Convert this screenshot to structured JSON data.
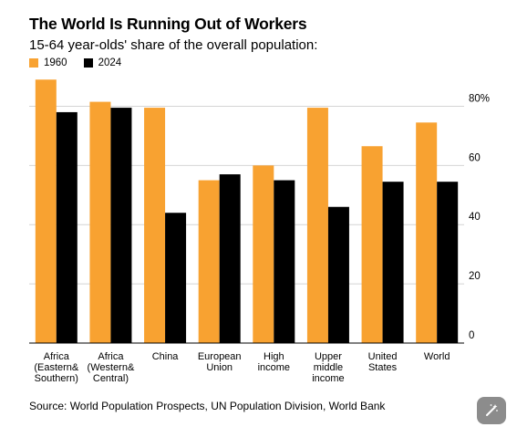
{
  "title": "The World Is Running Out of Workers",
  "subtitle": "15-64 year-olds' share of the overall population:",
  "legend": [
    {
      "label": "1960",
      "color": "#f8a231"
    },
    {
      "label": "2024",
      "color": "#000000"
    }
  ],
  "source": "Source: World Population Prospects, UN Population Division, World Bank",
  "magic_button_icon": "magic-wand-icon",
  "chart_data": {
    "type": "bar",
    "categories": [
      [
        "Africa",
        "(Eastern&",
        "Southern)"
      ],
      [
        "Africa",
        "(Western&",
        "Central)"
      ],
      [
        "China"
      ],
      [
        "European",
        "Union"
      ],
      [
        "High",
        "income"
      ],
      [
        "Upper",
        "middle",
        "income"
      ],
      [
        "United",
        "States"
      ],
      [
        "World"
      ]
    ],
    "series": [
      {
        "name": "1960",
        "color": "#f8a231",
        "values": [
          89,
          81.5,
          79.5,
          55,
          60,
          79.5,
          66.5,
          74.5
        ]
      },
      {
        "name": "2024",
        "color": "#000000",
        "values": [
          78,
          79.5,
          44,
          57,
          55,
          46,
          54.5,
          54.5
        ]
      }
    ],
    "yticks": [
      0,
      20,
      40,
      60,
      80
    ],
    "ytick_labels": [
      "0",
      "20",
      "40",
      "60",
      "80%"
    ],
    "ylim": [
      0,
      90
    ],
    "grid": true,
    "legend_position": "top-left"
  }
}
